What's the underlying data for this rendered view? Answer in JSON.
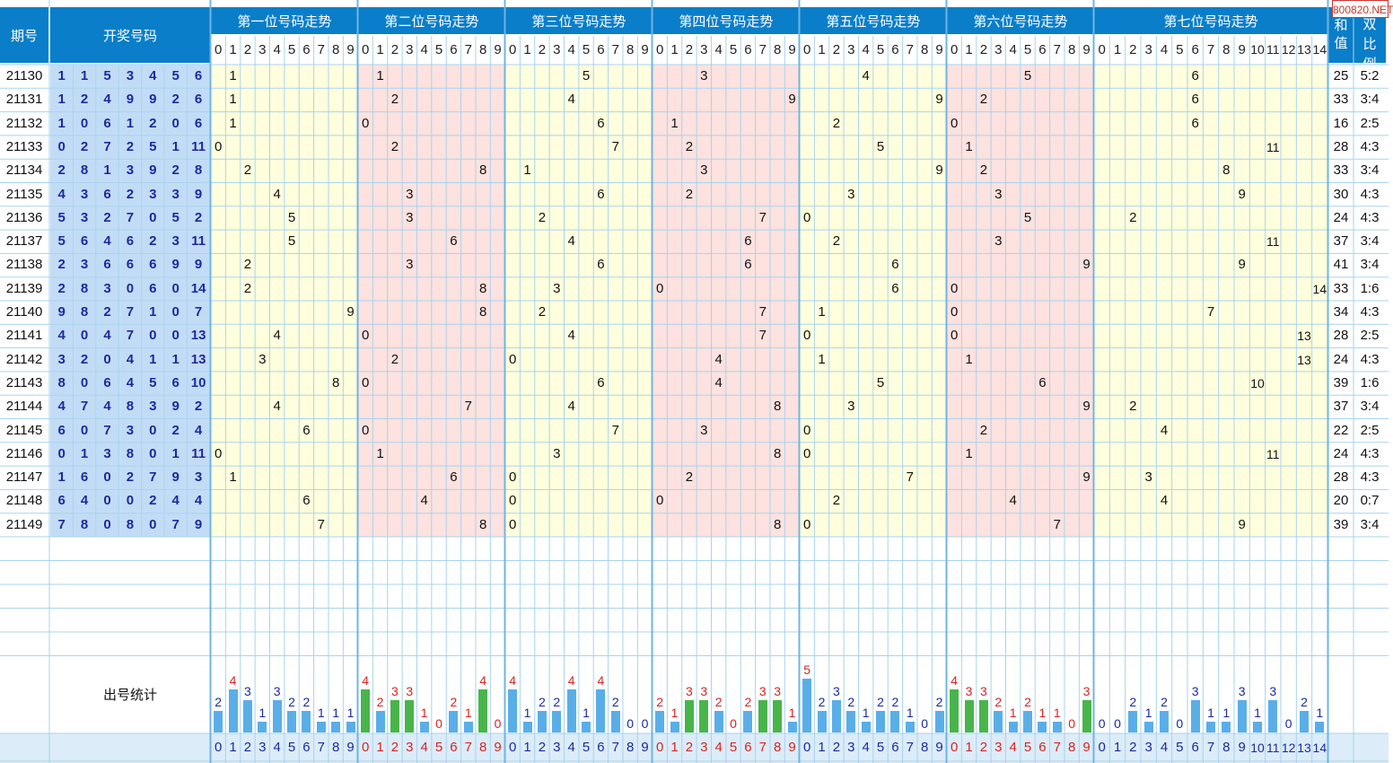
{
  "header": {
    "issue": "期号",
    "draw": "开奖号码",
    "sum_label": "和值",
    "ratio_label": "单双比例",
    "stat_label": "出号统计"
  },
  "site_label": "800820.NET",
  "chart_data": {
    "type": "table",
    "positions": [
      {
        "title": "第一位号码走势",
        "digits": [
          "0",
          "1",
          "2",
          "3",
          "4",
          "5",
          "6",
          "7",
          "8",
          "9"
        ]
      },
      {
        "title": "第二位号码走势",
        "digits": [
          "0",
          "1",
          "2",
          "3",
          "4",
          "5",
          "6",
          "7",
          "8",
          "9"
        ]
      },
      {
        "title": "第三位号码走势",
        "digits": [
          "0",
          "1",
          "2",
          "3",
          "4",
          "5",
          "6",
          "7",
          "8",
          "9"
        ]
      },
      {
        "title": "第四位号码走势",
        "digits": [
          "0",
          "1",
          "2",
          "3",
          "4",
          "5",
          "6",
          "7",
          "8",
          "9"
        ]
      },
      {
        "title": "第五位号码走势",
        "digits": [
          "0",
          "1",
          "2",
          "3",
          "4",
          "5",
          "6",
          "7",
          "8",
          "9"
        ]
      },
      {
        "title": "第六位号码走势",
        "digits": [
          "0",
          "1",
          "2",
          "3",
          "4",
          "5",
          "6",
          "7",
          "8",
          "9"
        ]
      },
      {
        "title": "第七位号码走势",
        "digits": [
          "0",
          "1",
          "2",
          "3",
          "4",
          "5",
          "6",
          "7",
          "8",
          "9",
          "10",
          "11",
          "12",
          "13",
          "14"
        ]
      }
    ],
    "rows": [
      {
        "issue": "21130",
        "draw": [
          "1",
          "1",
          "5",
          "3",
          "4",
          "5",
          "6"
        ],
        "sum": "25",
        "ratio": "5:2"
      },
      {
        "issue": "21131",
        "draw": [
          "1",
          "2",
          "4",
          "9",
          "9",
          "2",
          "6"
        ],
        "sum": "33",
        "ratio": "3:4"
      },
      {
        "issue": "21132",
        "draw": [
          "1",
          "0",
          "6",
          "1",
          "2",
          "0",
          "6"
        ],
        "sum": "16",
        "ratio": "2:5"
      },
      {
        "issue": "21133",
        "draw": [
          "0",
          "2",
          "7",
          "2",
          "5",
          "1",
          "11"
        ],
        "sum": "28",
        "ratio": "4:3"
      },
      {
        "issue": "21134",
        "draw": [
          "2",
          "8",
          "1",
          "3",
          "9",
          "2",
          "8"
        ],
        "sum": "33",
        "ratio": "3:4"
      },
      {
        "issue": "21135",
        "draw": [
          "4",
          "3",
          "6",
          "2",
          "3",
          "3",
          "9"
        ],
        "sum": "30",
        "ratio": "4:3"
      },
      {
        "issue": "21136",
        "draw": [
          "5",
          "3",
          "2",
          "7",
          "0",
          "5",
          "2"
        ],
        "sum": "24",
        "ratio": "4:3"
      },
      {
        "issue": "21137",
        "draw": [
          "5",
          "6",
          "4",
          "6",
          "2",
          "3",
          "11"
        ],
        "sum": "37",
        "ratio": "3:4"
      },
      {
        "issue": "21138",
        "draw": [
          "2",
          "3",
          "6",
          "6",
          "6",
          "9",
          "9"
        ],
        "sum": "41",
        "ratio": "3:4"
      },
      {
        "issue": "21139",
        "draw": [
          "2",
          "8",
          "3",
          "0",
          "6",
          "0",
          "14"
        ],
        "sum": "33",
        "ratio": "1:6"
      },
      {
        "issue": "21140",
        "draw": [
          "9",
          "8",
          "2",
          "7",
          "1",
          "0",
          "7"
        ],
        "sum": "34",
        "ratio": "4:3"
      },
      {
        "issue": "21141",
        "draw": [
          "4",
          "0",
          "4",
          "7",
          "0",
          "0",
          "13"
        ],
        "sum": "28",
        "ratio": "2:5"
      },
      {
        "issue": "21142",
        "draw": [
          "3",
          "2",
          "0",
          "4",
          "1",
          "1",
          "13"
        ],
        "sum": "24",
        "ratio": "4:3"
      },
      {
        "issue": "21143",
        "draw": [
          "8",
          "0",
          "6",
          "4",
          "5",
          "6",
          "10"
        ],
        "sum": "39",
        "ratio": "1:6"
      },
      {
        "issue": "21144",
        "draw": [
          "4",
          "7",
          "4",
          "8",
          "3",
          "9",
          "2"
        ],
        "sum": "37",
        "ratio": "3:4"
      },
      {
        "issue": "21145",
        "draw": [
          "6",
          "0",
          "7",
          "3",
          "0",
          "2",
          "4"
        ],
        "sum": "22",
        "ratio": "2:5"
      },
      {
        "issue": "21146",
        "draw": [
          "0",
          "1",
          "3",
          "8",
          "0",
          "1",
          "11"
        ],
        "sum": "24",
        "ratio": "4:3"
      },
      {
        "issue": "21147",
        "draw": [
          "1",
          "6",
          "0",
          "2",
          "7",
          "9",
          "3"
        ],
        "sum": "28",
        "ratio": "4:3"
      },
      {
        "issue": "21148",
        "draw": [
          "6",
          "4",
          "0",
          "0",
          "2",
          "4",
          "4"
        ],
        "sum": "20",
        "ratio": "0:7"
      },
      {
        "issue": "21149",
        "draw": [
          "7",
          "8",
          "0",
          "8",
          "0",
          "7",
          "9"
        ],
        "sum": "39",
        "ratio": "3:4"
      }
    ],
    "stats": [
      [
        "2",
        "4",
        "3",
        "1",
        "3",
        "2",
        "2",
        "1",
        "1",
        "1"
      ],
      [
        "4",
        "2",
        "3",
        "3",
        "1",
        "0",
        "2",
        "1",
        "4",
        "0"
      ],
      [
        "4",
        "1",
        "2",
        "2",
        "4",
        "1",
        "4",
        "2",
        "0",
        "0"
      ],
      [
        "2",
        "1",
        "3",
        "3",
        "2",
        "0",
        "2",
        "3",
        "3",
        "1"
      ],
      [
        "5",
        "2",
        "3",
        "2",
        "1",
        "2",
        "2",
        "1",
        "0",
        "2"
      ],
      [
        "4",
        "3",
        "3",
        "2",
        "1",
        "2",
        "1",
        "1",
        "0",
        "3"
      ],
      [
        "0",
        "0",
        "2",
        "1",
        "2",
        "0",
        "3",
        "1",
        "1",
        "3",
        "1",
        "3",
        "0",
        "2",
        "1"
      ]
    ],
    "colors": {
      "header": "#0a7ec9",
      "draw_bg": "#c3dcf6",
      "zone_yellow": "#ffffdd",
      "zone_pink": "#fde2df",
      "grid": "#a9d3ee",
      "bar_blue": "#5aaee8",
      "bar_green": "#48b54a",
      "text_red": "#d62424",
      "text_blue": "#1a2a9e"
    }
  }
}
